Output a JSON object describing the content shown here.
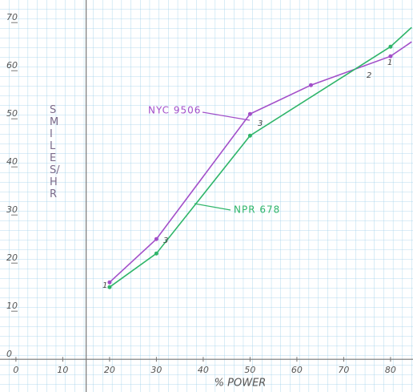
{
  "chart_data": {
    "type": "line",
    "x_label": "% POWER",
    "y_label": "SMILES/HR",
    "series": [
      {
        "name": "NYC 9506",
        "color": "#a24fc9",
        "x": [
          20,
          30,
          50,
          63,
          80,
          84.5
        ],
        "values": [
          16,
          25,
          51,
          57,
          63,
          66
        ]
      },
      {
        "name": "NPR 678",
        "color": "#2fb56a",
        "x": [
          20,
          30,
          50,
          80,
          84.5
        ],
        "values": [
          15,
          22,
          46.5,
          65,
          69
        ]
      }
    ],
    "annotations": [
      "1",
      "3",
      "3",
      "2",
      "1"
    ],
    "xlim": [
      -3.4,
      84.8
    ],
    "ylim": [
      -6.8,
      74.7
    ],
    "xticks": [
      0,
      10,
      20,
      30,
      40,
      50,
      60,
      70,
      80
    ],
    "yticks": [
      0,
      10,
      20,
      30,
      40,
      50,
      60,
      70
    ],
    "y_axis_at": 15
  }
}
